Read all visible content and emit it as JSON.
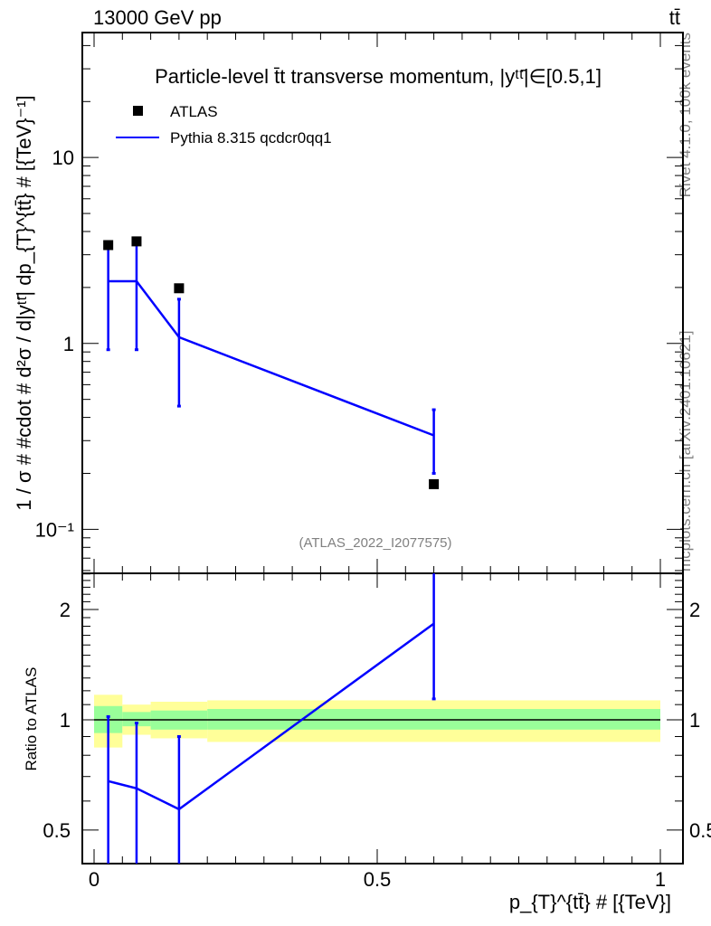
{
  "header": {
    "energy": "13000 GeV pp",
    "process": "tt̄"
  },
  "side": {
    "rivet": "Rivet 4.1.0,  100k events",
    "mcplots": "mcplots.cern.ch [arXiv:2401.10621]"
  },
  "chart_data": [
    {
      "type": "line",
      "title": "Particle-level t̄t transverse momentum, |yᵗᵗ̄|∈[0.5,1]",
      "ylabel": "1 / σ # #cdot # d²σ / d|yᵗᵗ̄| dp_{T}^{tt̄} # [{TeV}⁻¹]",
      "yscale": "log",
      "ylim": [
        0.058,
        47
      ],
      "yticks": [
        {
          "v": 0.1,
          "label": "10⁻¹"
        },
        {
          "v": 1,
          "label": "1"
        },
        {
          "v": 10,
          "label": "10"
        }
      ],
      "legend": {
        "placement": "top-left",
        "entries": [
          "ATLAS",
          "Pythia 8.315 qcdcr0qq1"
        ]
      },
      "watermark": "(ATLAS_2022_I2077575)",
      "bin_edges": [
        0,
        0.05,
        0.1,
        0.2,
        1.0
      ],
      "x": [
        0.025,
        0.075,
        0.15,
        0.6
      ],
      "series": [
        {
          "name": "ATLAS",
          "color": "#000000",
          "marker": "square",
          "values": [
            3.38,
            3.54,
            1.98,
            0.175
          ]
        },
        {
          "name": "Pythia 8.315 qcdcr0qq1",
          "color": "#0000ff",
          "values": [
            2.16,
            2.16,
            1.08,
            0.32
          ],
          "err_low": [
            0.925,
            0.925,
            0.46,
            0.2
          ],
          "err_high": [
            3.4,
            3.4,
            1.73,
            0.44
          ]
        }
      ]
    },
    {
      "type": "line",
      "ylabel": "Ratio to ATLAS",
      "xlabel": "p_{T}^{tt̄} # [{TeV}]",
      "yscale": "log",
      "ylim": [
        0.405,
        2.51
      ],
      "xlim": [
        -0.02,
        1.04
      ],
      "xticks": [
        {
          "v": 0,
          "label": "0"
        },
        {
          "v": 0.5,
          "label": "0.5"
        },
        {
          "v": 1,
          "label": "1"
        }
      ],
      "yticks": [
        {
          "v": 0.5,
          "label": "0.5"
        },
        {
          "v": 1,
          "label": "1"
        },
        {
          "v": 2,
          "label": "2"
        }
      ],
      "bands": {
        "bin_edges": [
          0,
          0.05,
          0.1,
          0.2,
          1.0
        ],
        "yellow_low": [
          0.84,
          0.91,
          0.89,
          0.87
        ],
        "yellow_high": [
          1.17,
          1.1,
          1.12,
          1.13
        ],
        "green_low": [
          0.92,
          0.96,
          0.94,
          0.94
        ],
        "green_high": [
          1.09,
          1.05,
          1.06,
          1.07
        ],
        "yellow_color": "#ffff99",
        "green_color": "#99ff99"
      },
      "x": [
        0.025,
        0.075,
        0.15,
        0.6
      ],
      "series": [
        {
          "name": "Pythia 8.315 qcdcr0qq1",
          "color": "#0000ff",
          "values": [
            0.68,
            0.65,
            0.57,
            1.83
          ],
          "err_low": [
            0.3,
            0.3,
            0.3,
            1.14
          ],
          "err_high": [
            1.02,
            0.98,
            0.9,
            3.0
          ]
        }
      ]
    }
  ]
}
